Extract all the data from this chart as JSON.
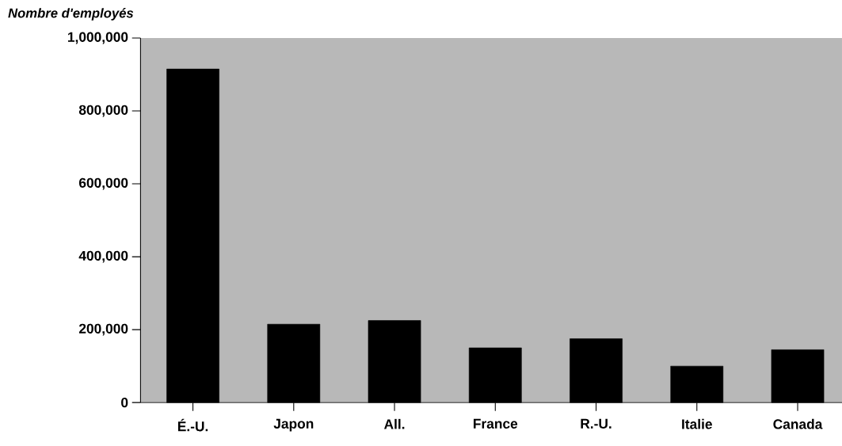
{
  "chart_data": {
    "type": "bar",
    "ylabel": "Nombre d'employés",
    "categories": [
      "É.-U.",
      "Japon",
      "All.",
      "France",
      "R.-U.",
      "Italie",
      "Canada"
    ],
    "values": [
      915000,
      215000,
      225000,
      150000,
      175000,
      100000,
      145000
    ],
    "color": "#000000",
    "ylim": [
      0,
      1000000
    ],
    "yticks": [
      {
        "value": 0,
        "label": "0"
      },
      {
        "value": 200000,
        "label": "200,000"
      },
      {
        "value": 400000,
        "label": "400,000"
      },
      {
        "value": 600000,
        "label": "600,000"
      },
      {
        "value": 800000,
        "label": "800,000"
      },
      {
        "value": 1000000,
        "label": "1,000,000"
      }
    ]
  }
}
